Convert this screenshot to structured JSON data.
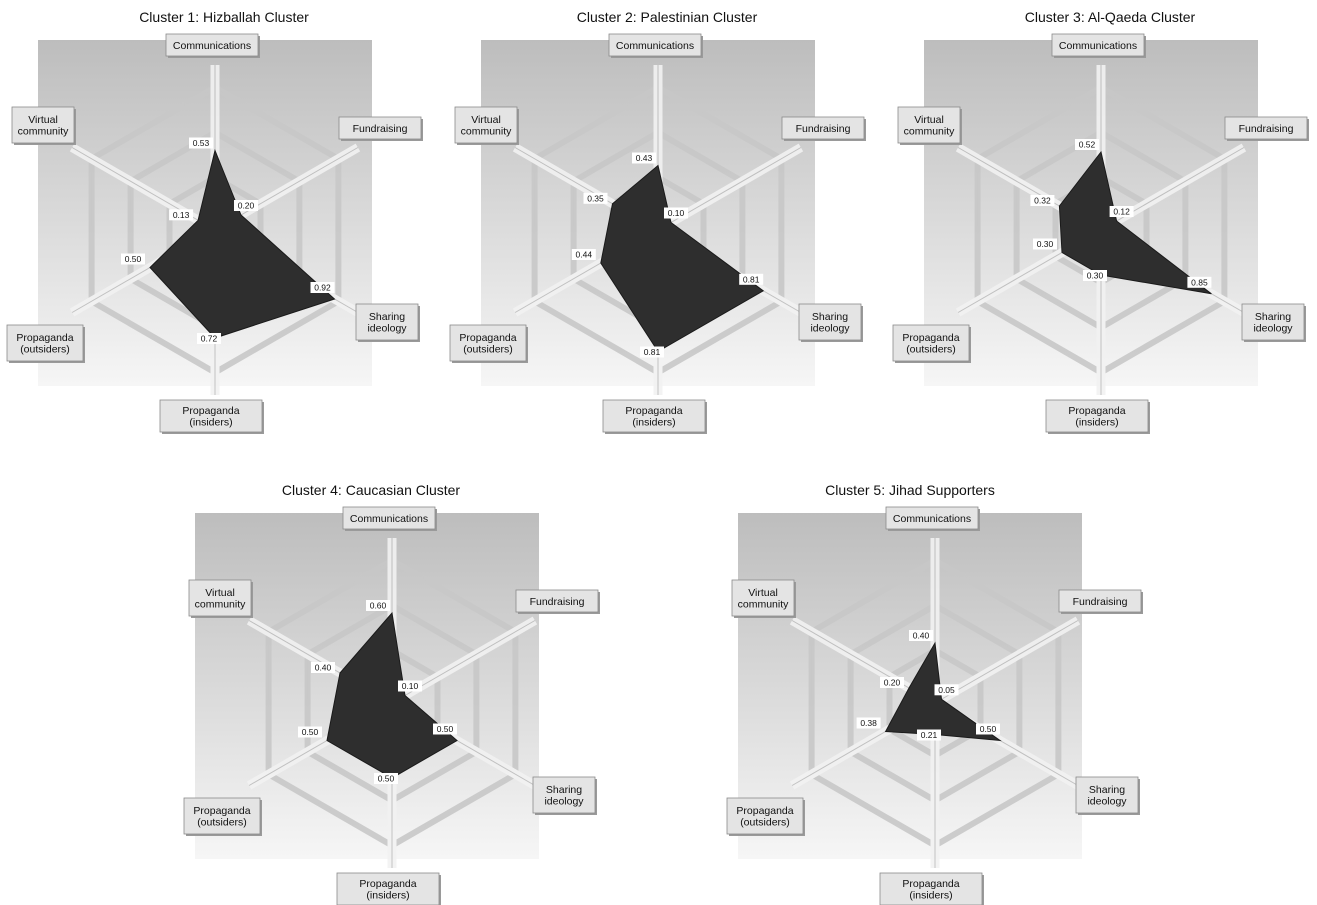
{
  "colors": {
    "polygon": "#2e2e2e",
    "label_box": "#e4e4e4",
    "panel_background_top": "#b8b8b8",
    "panel_background_bottom": "#f4f4f4"
  },
  "chart_data": [
    {
      "type": "radar",
      "title": "Cluster 1: Hizballah Cluster",
      "axes": [
        "Communications",
        "Fundraising",
        "Sharing ideology",
        "Propaganda (insiders)",
        "Propaganda (outsiders)",
        "Virtual community"
      ],
      "values": [
        0.53,
        0.2,
        0.92,
        0.72,
        0.5,
        0.13
      ],
      "value_labels": [
        "0.53",
        "0.20",
        "0.92",
        "0.72",
        "0.50",
        "0.13"
      ]
    },
    {
      "type": "radar",
      "title": "Cluster 2: Palestinian Cluster",
      "axes": [
        "Communications",
        "Fundraising",
        "Sharing ideology",
        "Propaganda (insiders)",
        "Propaganda (outsiders)",
        "Virtual community"
      ],
      "values": [
        0.43,
        0.1,
        0.81,
        0.81,
        0.44,
        0.35
      ],
      "value_labels": [
        "0.43",
        "0.10",
        "0.81",
        "0.81",
        "0.44",
        "0.35"
      ]
    },
    {
      "type": "radar",
      "title": "Cluster 3: Al-Qaeda Cluster",
      "axes": [
        "Communications",
        "Fundraising",
        "Sharing ideology",
        "Propaganda (insiders)",
        "Propaganda (outsiders)",
        "Virtual community"
      ],
      "values": [
        0.52,
        0.12,
        0.85,
        0.3,
        0.3,
        0.32
      ],
      "value_labels": [
        "0.52",
        "0.12",
        "0.85",
        "0.30",
        "0.30",
        "0.32"
      ]
    },
    {
      "type": "radar",
      "title": "Cluster 4: Caucasian Cluster",
      "axes": [
        "Communications",
        "Fundraising",
        "Sharing ideology",
        "Propaganda (insiders)",
        "Propaganda (outsiders)",
        "Virtual community"
      ],
      "values": [
        0.6,
        0.1,
        0.5,
        0.5,
        0.5,
        0.4
      ],
      "value_labels": [
        "0.60",
        "0.10",
        "0.50",
        "0.50",
        "0.50",
        "0.40"
      ]
    },
    {
      "type": "radar",
      "title": "Cluster 5: Jihad Supporters",
      "axes": [
        "Communications",
        "Fundraising",
        "Sharing ideology",
        "Propaganda (insiders)",
        "Propaganda (outsiders)",
        "Virtual community"
      ],
      "values": [
        0.4,
        0.05,
        0.5,
        0.21,
        0.38,
        0.2
      ],
      "value_labels": [
        "0.40",
        "0.05",
        "0.50",
        "0.21",
        "0.38",
        "0.20"
      ]
    }
  ],
  "axis_display_lines": {
    "Communications": [
      "Communications"
    ],
    "Fundraising": [
      "Fundraising"
    ],
    "Sharing ideology": [
      "Sharing",
      "ideology"
    ],
    "Propaganda (insiders)": [
      "Propaganda",
      "(insiders)"
    ],
    "Propaganda (outsiders)": [
      "Propaganda",
      "(outsiders)"
    ],
    "Virtual community": [
      "Virtual",
      "community"
    ]
  }
}
